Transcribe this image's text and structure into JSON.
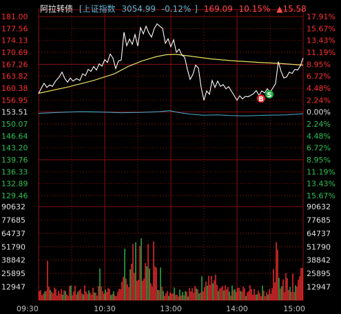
{
  "header": {
    "name": "阿拉转债",
    "index_name": "上证指数",
    "index_value": "3054.99",
    "index_change": "-0.12%",
    "price": "169.09",
    "change_pct": "10.15%",
    "change_amt": "▲15.58"
  },
  "colors": {
    "price_line": "#ffffff",
    "avg_line": "#e8e060",
    "index_line": "#40a0c0",
    "grid": "#8a1010",
    "up": "#ff3030",
    "down": "#30c050",
    "neutral": "#e0e0e0",
    "vol_label": "#e0e0e0",
    "time_label": "#c0c0c0"
  },
  "chart_data": {
    "type": "line",
    "price_axis": {
      "left_labels": [
        "181.00",
        "177.56",
        "174.13",
        "170.69",
        "167.26",
        "163.82",
        "160.38",
        "156.95",
        "153.51",
        "150.07",
        "146.64",
        "143.20",
        "139.76",
        "136.33",
        "132.89",
        "129.46"
      ],
      "right_labels": [
        "17.91%",
        "15.67%",
        "13.43%",
        "11.19%",
        "8.95%",
        "6.72%",
        "4.48%",
        "2.24%",
        "0.00%",
        "2.24%",
        "4.48%",
        "6.72%",
        "8.95%",
        "11.19%",
        "13.43%",
        "15.67%"
      ],
      "ylim": [
        129.46,
        181.0
      ],
      "prev_close": 153.51
    },
    "volume_axis": {
      "labels": [
        "90632",
        "77685",
        "64737",
        "51790",
        "38842",
        "25895",
        "12947"
      ],
      "ylim": [
        0,
        90632
      ]
    },
    "time_labels": [
      "09:30",
      "10:30",
      "13:00",
      "14:00",
      "15:00"
    ],
    "price_series": [
      {
        "x": 0,
        "y": 158.8
      },
      {
        "x": 4,
        "y": 160.4
      },
      {
        "x": 8,
        "y": 161.8
      },
      {
        "x": 12,
        "y": 160.6
      },
      {
        "x": 16,
        "y": 161.3
      },
      {
        "x": 20,
        "y": 160.9
      },
      {
        "x": 25,
        "y": 162.5
      },
      {
        "x": 30,
        "y": 163.6
      },
      {
        "x": 34,
        "y": 165.0
      },
      {
        "x": 38,
        "y": 163.2
      },
      {
        "x": 42,
        "y": 162.1
      },
      {
        "x": 46,
        "y": 163.3
      },
      {
        "x": 50,
        "y": 162.4
      },
      {
        "x": 55,
        "y": 163.1
      },
      {
        "x": 60,
        "y": 162.6
      },
      {
        "x": 64,
        "y": 164.5
      },
      {
        "x": 68,
        "y": 164.0
      },
      {
        "x": 72,
        "y": 165.8
      },
      {
        "x": 76,
        "y": 165.2
      },
      {
        "x": 80,
        "y": 166.6
      },
      {
        "x": 84,
        "y": 165.6
      },
      {
        "x": 88,
        "y": 167.4
      },
      {
        "x": 92,
        "y": 166.7
      },
      {
        "x": 96,
        "y": 168.6
      },
      {
        "x": 100,
        "y": 167.8
      },
      {
        "x": 104,
        "y": 170.2
      },
      {
        "x": 108,
        "y": 169.0
      },
      {
        "x": 112,
        "y": 166.0
      },
      {
        "x": 116,
        "y": 168.2
      },
      {
        "x": 120,
        "y": 168.5
      },
      {
        "x": 124,
        "y": 176.5
      },
      {
        "x": 128,
        "y": 172.6
      },
      {
        "x": 132,
        "y": 174.5
      },
      {
        "x": 136,
        "y": 173.0
      },
      {
        "x": 140,
        "y": 175.8
      },
      {
        "x": 144,
        "y": 172.5
      },
      {
        "x": 148,
        "y": 177.8
      },
      {
        "x": 152,
        "y": 176.0
      },
      {
        "x": 156,
        "y": 178.2
      },
      {
        "x": 160,
        "y": 176.3
      },
      {
        "x": 164,
        "y": 175.1
      },
      {
        "x": 168,
        "y": 177.6
      },
      {
        "x": 172,
        "y": 178.9
      },
      {
        "x": 176,
        "y": 178.2
      },
      {
        "x": 180,
        "y": 177.6
      },
      {
        "x": 184,
        "y": 173.3
      },
      {
        "x": 188,
        "y": 174.6
      },
      {
        "x": 192,
        "y": 172.3
      },
      {
        "x": 196,
        "y": 174.3
      },
      {
        "x": 200,
        "y": 170.7
      },
      {
        "x": 204,
        "y": 171.6
      },
      {
        "x": 208,
        "y": 169.9
      },
      {
        "x": 212,
        "y": 169.3
      },
      {
        "x": 216,
        "y": 165.8
      },
      {
        "x": 220,
        "y": 162.9
      },
      {
        "x": 224,
        "y": 164.3
      },
      {
        "x": 228,
        "y": 167.0
      },
      {
        "x": 232,
        "y": 166.2
      },
      {
        "x": 236,
        "y": 160.6
      },
      {
        "x": 240,
        "y": 156.9
      },
      {
        "x": 244,
        "y": 159.6
      },
      {
        "x": 248,
        "y": 158.6
      },
      {
        "x": 252,
        "y": 162.6
      },
      {
        "x": 256,
        "y": 160.6
      },
      {
        "x": 260,
        "y": 162.4
      },
      {
        "x": 264,
        "y": 160.9
      },
      {
        "x": 268,
        "y": 161.4
      },
      {
        "x": 272,
        "y": 160.2
      },
      {
        "x": 276,
        "y": 160.8
      },
      {
        "x": 280,
        "y": 159.5
      },
      {
        "x": 284,
        "y": 158.2
      },
      {
        "x": 288,
        "y": 156.9
      },
      {
        "x": 292,
        "y": 158.2
      },
      {
        "x": 296,
        "y": 157.3
      },
      {
        "x": 300,
        "y": 158.0
      },
      {
        "x": 304,
        "y": 157.9
      },
      {
        "x": 308,
        "y": 158.3
      },
      {
        "x": 312,
        "y": 158.8
      },
      {
        "x": 316,
        "y": 159.7
      },
      {
        "x": 320,
        "y": 158.3
      },
      {
        "x": 324,
        "y": 159.6
      },
      {
        "x": 328,
        "y": 159.0
      },
      {
        "x": 332,
        "y": 160.2
      },
      {
        "x": 336,
        "y": 159.2
      },
      {
        "x": 340,
        "y": 160.4
      },
      {
        "x": 344,
        "y": 161.7
      },
      {
        "x": 348,
        "y": 168.0
      },
      {
        "x": 352,
        "y": 165.2
      },
      {
        "x": 356,
        "y": 163.3
      },
      {
        "x": 360,
        "y": 163.6
      },
      {
        "x": 364,
        "y": 165.0
      },
      {
        "x": 368,
        "y": 164.6
      },
      {
        "x": 372,
        "y": 165.8
      },
      {
        "x": 376,
        "y": 165.6
      },
      {
        "x": 380,
        "y": 166.8
      },
      {
        "x": 384,
        "y": 169.09
      }
    ],
    "avg_series": [
      {
        "x": 0,
        "y": 158.9
      },
      {
        "x": 40,
        "y": 160.6
      },
      {
        "x": 80,
        "y": 162.6
      },
      {
        "x": 110,
        "y": 164.5
      },
      {
        "x": 130,
        "y": 166.6
      },
      {
        "x": 150,
        "y": 168.2
      },
      {
        "x": 170,
        "y": 169.4
      },
      {
        "x": 185,
        "y": 170.0
      },
      {
        "x": 200,
        "y": 170.1
      },
      {
        "x": 220,
        "y": 169.6
      },
      {
        "x": 250,
        "y": 168.8
      },
      {
        "x": 280,
        "y": 168.3
      },
      {
        "x": 320,
        "y": 167.8
      },
      {
        "x": 350,
        "y": 167.5
      },
      {
        "x": 384,
        "y": 167.0
      }
    ],
    "index_series": [
      {
        "x": 0,
        "y": 153.1
      },
      {
        "x": 30,
        "y": 153.4
      },
      {
        "x": 60,
        "y": 153.6
      },
      {
        "x": 90,
        "y": 153.5
      },
      {
        "x": 120,
        "y": 153.3
      },
      {
        "x": 150,
        "y": 153.4
      },
      {
        "x": 175,
        "y": 153.6
      },
      {
        "x": 190,
        "y": 153.9
      },
      {
        "x": 205,
        "y": 153.3
      },
      {
        "x": 220,
        "y": 152.9
      },
      {
        "x": 240,
        "y": 152.6
      },
      {
        "x": 260,
        "y": 152.7
      },
      {
        "x": 280,
        "y": 152.5
      },
      {
        "x": 300,
        "y": 152.4
      },
      {
        "x": 330,
        "y": 152.6
      },
      {
        "x": 360,
        "y": 152.7
      },
      {
        "x": 384,
        "y": 153.0
      }
    ],
    "markers": [
      {
        "label": "B",
        "x": 323,
        "y": 157.4,
        "color": "#e02020"
      },
      {
        "label": "S",
        "x": 335,
        "y": 158.6,
        "color": "#20b040"
      }
    ]
  }
}
